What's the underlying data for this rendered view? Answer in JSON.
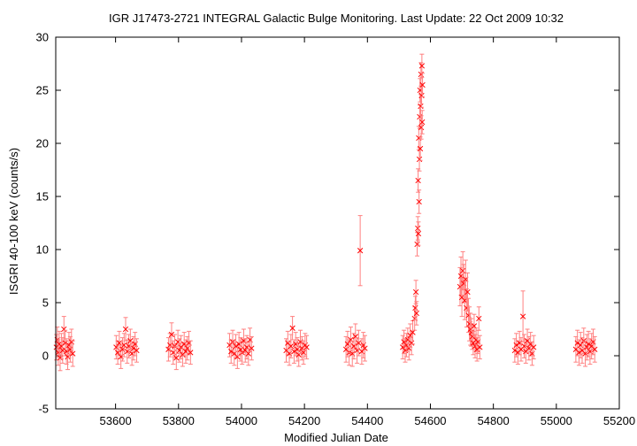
{
  "chart_data": {
    "type": "scatter",
    "title": "IGR J17473-2721   INTEGRAL Galactic Bulge Monitoring.  Last Update: 22 Oct 2009 10:32",
    "xlabel": "Modified Julian Date",
    "ylabel": "ISGRI 40-100 keV (counts/s)",
    "xlim": [
      53410,
      55200
    ],
    "ylim": [
      -5,
      30
    ],
    "xticks": [
      53600,
      53800,
      54000,
      54200,
      54400,
      54600,
      54800,
      55000,
      55200
    ],
    "yticks": [
      -5,
      0,
      5,
      10,
      15,
      20,
      25,
      30
    ],
    "grid": false,
    "legend": "none",
    "marker": "x",
    "color": "#ff0000",
    "error_color": "#ff8080",
    "series": [
      {
        "x": [
          53412,
          53415,
          53418,
          53421,
          53424,
          53428,
          53432,
          53436,
          53440,
          53444,
          53448,
          53452,
          53456,
          53460,
          53464,
          53602,
          53607,
          53612,
          53617,
          53622,
          53627,
          53632,
          53637,
          53642,
          53647,
          53652,
          53657,
          53662,
          53667,
          53768,
          53773,
          53778,
          53783,
          53788,
          53793,
          53798,
          53803,
          53808,
          53813,
          53818,
          53823,
          53828,
          53833,
          53838,
          53962,
          53967,
          53972,
          53977,
          53982,
          53987,
          53992,
          53997,
          54002,
          54007,
          54012,
          54017,
          54022,
          54027,
          54032,
          54142,
          54147,
          54152,
          54157,
          54162,
          54167,
          54172,
          54177,
          54182,
          54187,
          54192,
          54197,
          54202,
          54207,
          54332,
          54337,
          54342,
          54347,
          54352,
          54357,
          54362,
          54367,
          54372,
          54377,
          54382,
          54387,
          54392,
          54512,
          54516,
          54520,
          54524,
          54528,
          54532,
          54536,
          54540,
          54544,
          54550,
          54552,
          54554,
          54556,
          54558,
          54560,
          54561,
          54562,
          54563,
          54564,
          54565,
          54566,
          54567,
          54568,
          54569,
          54570,
          54571,
          54572,
          54573,
          54574,
          54575,
          54694,
          54697,
          54700,
          54703,
          54706,
          54709,
          54712,
          54715,
          54718,
          54721,
          54724,
          54727,
          54730,
          54733,
          54736,
          54739,
          54742,
          54745,
          54748,
          54751,
          54754,
          54757,
          54868,
          54873,
          54878,
          54883,
          54888,
          54894,
          54898,
          54903,
          54908,
          54913,
          54918,
          54923,
          54928,
          55062,
          55067,
          55072,
          55077,
          55082,
          55087,
          55092,
          55097,
          55102,
          55107,
          55112,
          55117,
          55122
        ],
        "y": [
          0.8,
          1.5,
          0.3,
          1.1,
          -0.2,
          0.9,
          0.5,
          2.5,
          1.2,
          0.4,
          -0.1,
          1.0,
          0.6,
          1.3,
          0.2,
          0.8,
          0.3,
          1.2,
          -0.1,
          0.6,
          1.0,
          2.5,
          0.4,
          0.9,
          1.4,
          0.2,
          0.7,
          1.1,
          0.5,
          0.6,
          1.0,
          2.0,
          0.3,
          0.9,
          -0.2,
          1.3,
          0.5,
          0.8,
          0.1,
          1.1,
          0.4,
          0.7,
          1.2,
          0.3,
          1.0,
          0.4,
          1.3,
          0.2,
          0.9,
          -0.1,
          1.1,
          0.6,
          0.3,
          1.4,
          0.5,
          0.8,
          0.2,
          1.5,
          0.7,
          0.5,
          1.2,
          0.2,
          0.9,
          2.6,
          0.4,
          1.1,
          0.6,
          0.1,
          1.3,
          0.7,
          0.3,
          1.0,
          0.8,
          0.6,
          1.1,
          0.3,
          1.5,
          0.2,
          0.9,
          1.8,
          0.5,
          1.2,
          9.9,
          0.4,
          1.0,
          0.7,
          0.8,
          1.3,
          0.5,
          1.0,
          1.5,
          0.7,
          1.9,
          1.2,
          2.2,
          3.5,
          4.5,
          6.0,
          4.0,
          10.5,
          12.0,
          16.5,
          11.5,
          20.5,
          14.5,
          18.5,
          22.5,
          25.0,
          19.5,
          23.5,
          26.5,
          21.5,
          24.5,
          27.3,
          22.0,
          25.5,
          6.5,
          7.5,
          5.5,
          8.0,
          6.8,
          5.2,
          7.2,
          4.5,
          6.0,
          3.8,
          3.0,
          2.5,
          2.2,
          1.8,
          1.2,
          2.8,
          0.9,
          1.5,
          0.6,
          1.3,
          3.5,
          0.8,
          0.5,
          1.0,
          0.3,
          1.2,
          0.6,
          3.7,
          0.9,
          0.4,
          1.4,
          0.7,
          1.1,
          0.2,
          0.8,
          0.6,
          1.2,
          0.3,
          1.0,
          0.5,
          1.4,
          0.2,
          0.8,
          1.1,
          0.4,
          0.9,
          1.3,
          0.6
        ],
        "yerr": [
          1.2,
          1.2,
          1.2,
          1.2,
          1.2,
          1.2,
          1.2,
          1.2,
          1.2,
          1.2,
          1.2,
          1.2,
          1.2,
          1.2,
          1.2,
          1.1,
          1.1,
          1.1,
          1.1,
          1.1,
          1.1,
          1.1,
          1.1,
          1.1,
          1.1,
          1.1,
          1.1,
          1.1,
          1.1,
          1.1,
          1.1,
          1.1,
          1.1,
          1.1,
          1.1,
          1.1,
          1.1,
          1.1,
          1.1,
          1.1,
          1.1,
          1.1,
          1.1,
          1.1,
          1.1,
          1.1,
          1.1,
          1.1,
          1.1,
          1.1,
          1.1,
          1.1,
          1.1,
          1.1,
          1.1,
          1.1,
          1.1,
          1.1,
          1.1,
          1.1,
          1.1,
          1.1,
          1.1,
          1.1,
          1.1,
          1.1,
          1.1,
          1.1,
          1.1,
          1.1,
          1.1,
          1.1,
          1.1,
          1.2,
          1.2,
          1.2,
          1.2,
          1.2,
          1.2,
          1.2,
          1.2,
          1.2,
          3.3,
          1.2,
          1.2,
          1.2,
          1.1,
          1.1,
          1.1,
          1.1,
          1.1,
          1.1,
          1.1,
          1.1,
          1.1,
          1.1,
          1.1,
          1.1,
          1.1,
          1.1,
          1.1,
          1.1,
          1.1,
          1.1,
          1.1,
          1.1,
          1.1,
          1.1,
          1.1,
          1.1,
          1.1,
          1.1,
          1.1,
          1.1,
          1.1,
          1.1,
          1.8,
          1.8,
          1.8,
          1.8,
          1.8,
          1.8,
          1.8,
          1.8,
          1.8,
          1.6,
          1.6,
          1.5,
          1.3,
          1.2,
          1.1,
          1.1,
          1.1,
          1.1,
          1.1,
          1.1,
          1.1,
          1.1,
          1.1,
          1.1,
          1.1,
          1.1,
          1.1,
          2.4,
          1.1,
          1.1,
          1.1,
          1.1,
          1.1,
          1.1,
          1.1,
          1.2,
          1.2,
          1.2,
          1.2,
          1.2,
          1.2,
          1.2,
          1.2,
          1.2,
          1.2,
          1.2,
          1.2,
          1.2
        ]
      }
    ]
  }
}
